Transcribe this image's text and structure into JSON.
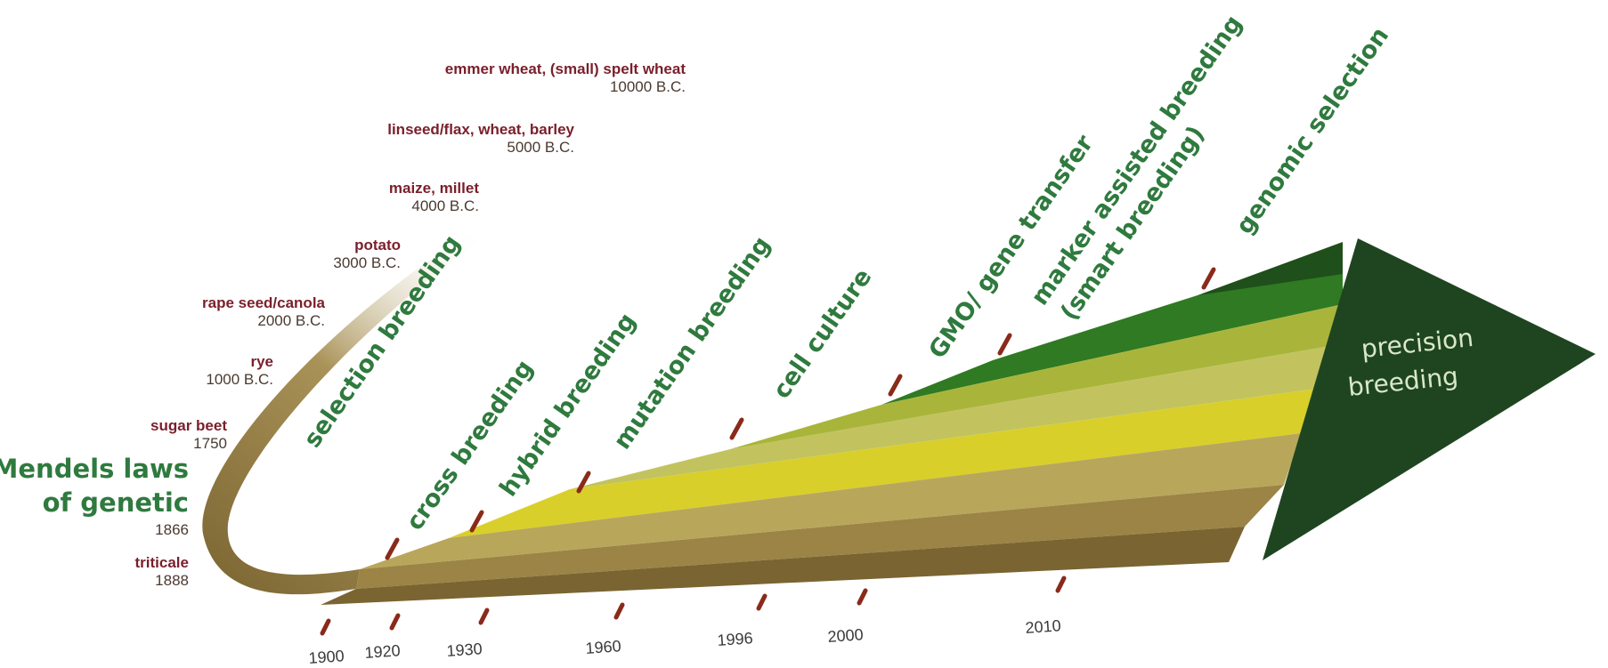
{
  "crops": [
    {
      "name": "emmer wheat, (small) spelt wheat",
      "date": "10000 B.C."
    },
    {
      "name": "linseed/flax, wheat, barley",
      "date": "5000 B.C."
    },
    {
      "name": "maize, millet",
      "date": "4000 B.C."
    },
    {
      "name": "potato",
      "date": "3000 B.C."
    },
    {
      "name": "rape seed/canola",
      "date": "2000 B.C."
    },
    {
      "name": "rye",
      "date": "1000 B.C."
    },
    {
      "name": "sugar beet",
      "date": "1750"
    }
  ],
  "mendel": {
    "line1": "Mendels laws",
    "line2": "of genetic",
    "date": "1866"
  },
  "triticale": {
    "name": "triticale",
    "date": "1888"
  },
  "methods": [
    "selection breeding",
    "cross breeding",
    "hybrid breeding",
    "mutation breeding",
    "cell culture",
    "GMO/ gene transfer",
    "marker assisted breeding",
    "(smart breeding)",
    "genomic selection"
  ],
  "years": [
    "1900",
    "1920",
    "1930",
    "1960",
    "1996",
    "2000",
    "2010"
  ],
  "arrow": {
    "line1": "precision",
    "line2": "breeding"
  },
  "colors": {
    "band_brown_dark": "#7a6431",
    "band_brown": "#9b8445",
    "band_tan": "#b8a75a",
    "band_yellow": "#d9cf2a",
    "band_light_olive": "#c2c35f",
    "band_olive": "#a9b53a",
    "band_green": "#2f7a22",
    "band_dark_green": "#1f4f1a",
    "arrow": "#1f4520",
    "text_green": "#2f7a3e",
    "text_maroon": "#7a1f2b"
  }
}
